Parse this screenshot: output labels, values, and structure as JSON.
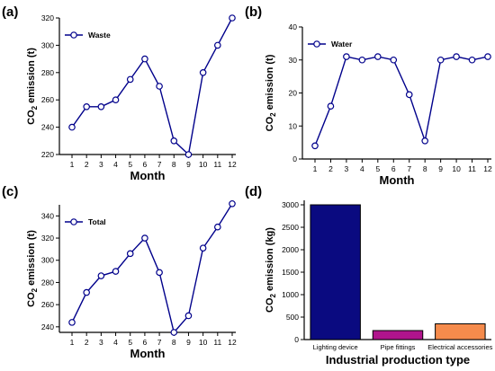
{
  "chart_data": [
    {
      "panel": "(a)",
      "type": "line",
      "x": [
        1,
        2,
        3,
        4,
        5,
        6,
        7,
        8,
        9,
        10,
        11,
        12
      ],
      "series": [
        {
          "name": "Waste",
          "values": [
            240,
            255,
            255,
            260,
            275,
            290,
            270,
            230,
            220,
            280,
            300,
            320
          ]
        }
      ],
      "xlabel": "Month",
      "ylabel_prefix": "CO",
      "ylabel_sub": "2",
      "ylabel_suffix": " emission (t)",
      "ylim": [
        220,
        320
      ],
      "yticks": [
        220,
        240,
        260,
        280,
        300,
        320
      ],
      "legend": "top-left",
      "color": "#00008b"
    },
    {
      "panel": "(b)",
      "type": "line",
      "x": [
        1,
        2,
        3,
        4,
        5,
        6,
        7,
        8,
        9,
        10,
        11,
        12
      ],
      "series": [
        {
          "name": "Water",
          "values": [
            4,
            16,
            31,
            30,
            31,
            30,
            19.5,
            5.5,
            30,
            31,
            30,
            31
          ]
        }
      ],
      "xlabel": "Month",
      "ylabel_prefix": "CO",
      "ylabel_sub": "2",
      "ylabel_suffix": " emission (t)",
      "ylim": [
        0,
        40
      ],
      "yticks": [
        0,
        10,
        20,
        30,
        40
      ],
      "legend": "top-left",
      "color": "#00008b"
    },
    {
      "panel": "(c)",
      "type": "line",
      "x": [
        1,
        2,
        3,
        4,
        5,
        6,
        7,
        8,
        9,
        10,
        11,
        12
      ],
      "series": [
        {
          "name": "Total",
          "values": [
            244,
            271,
            286,
            290,
            306,
            320,
            289,
            235,
            250,
            311,
            330,
            351
          ]
        }
      ],
      "xlabel": "Month",
      "ylabel_prefix": "CO",
      "ylabel_sub": "2",
      "ylabel_suffix": " emission (t)",
      "ylim": [
        235,
        350
      ],
      "yticks": [
        240,
        260,
        280,
        300,
        320,
        340
      ],
      "legend": "top-left",
      "color": "#00008b"
    },
    {
      "panel": "(d)",
      "type": "bar",
      "categories": [
        "Lighting device",
        "Pipe fittings",
        "Electrical accessories"
      ],
      "values": [
        3000,
        200,
        350
      ],
      "colors": [
        "#0a0a80",
        "#b0148c",
        "#f58b4c"
      ],
      "xlabel": "Industrial production type",
      "ylabel_prefix": "CO",
      "ylabel_sub": "2",
      "ylabel_suffix": " emission (kg)",
      "ylim": [
        0,
        3100
      ],
      "yticks": [
        0,
        500,
        1000,
        1500,
        2000,
        2500,
        3000
      ]
    }
  ]
}
